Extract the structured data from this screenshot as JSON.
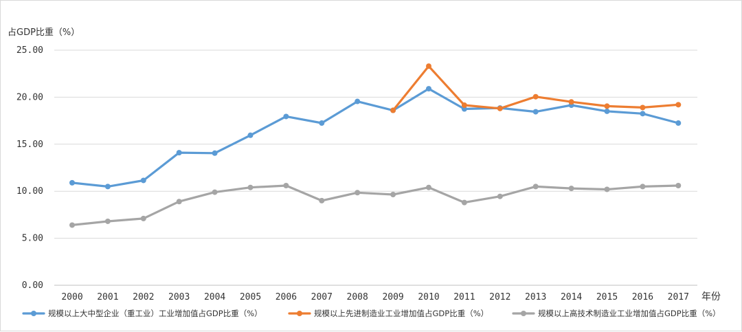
{
  "chart_data": {
    "type": "line",
    "title": "",
    "ylabel": "占GDP比重（%）",
    "xlabel": "年份",
    "ylim": [
      0,
      25
    ],
    "yticks": [
      "0.00",
      "5.00",
      "10.00",
      "15.00",
      "20.00",
      "25.00"
    ],
    "categories": [
      "2000",
      "2001",
      "2002",
      "2003",
      "2004",
      "2005",
      "2006",
      "2007",
      "2008",
      "2009",
      "2010",
      "2011",
      "2012",
      "2013",
      "2014",
      "2015",
      "2016",
      "2017"
    ],
    "grid": true,
    "legend_position": "bottom",
    "series": [
      {
        "name": "规模以上大中型企业（重工业）工业增加值占GDP比重（%）",
        "color": "#5B9BD5",
        "values": [
          10.9,
          10.5,
          11.15,
          14.1,
          14.05,
          15.95,
          17.95,
          17.25,
          19.55,
          18.6,
          20.9,
          18.75,
          18.85,
          18.45,
          19.15,
          18.5,
          18.25,
          17.25
        ]
      },
      {
        "name": "规模以上先进制造业工业增加值占GDP比重（%）",
        "color": "#ED7D31",
        "values": [
          null,
          null,
          null,
          null,
          null,
          null,
          null,
          null,
          null,
          18.6,
          23.3,
          19.15,
          18.8,
          20.05,
          19.5,
          19.05,
          18.9,
          19.2
        ]
      },
      {
        "name": "规模以上高技术制造业工业增加值占GDP比重（%）",
        "color": "#A5A5A5",
        "values": [
          6.4,
          6.8,
          7.1,
          8.9,
          9.9,
          10.4,
          10.6,
          9.0,
          9.85,
          9.65,
          10.4,
          8.8,
          9.45,
          10.5,
          10.3,
          10.2,
          10.5,
          10.6
        ]
      }
    ]
  }
}
